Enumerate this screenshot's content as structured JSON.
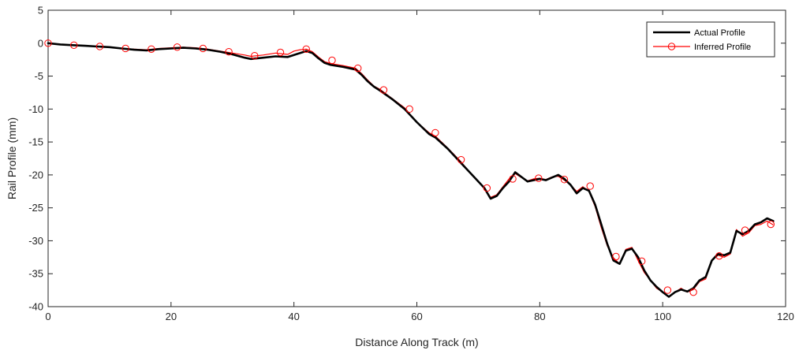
{
  "chart_data": {
    "type": "line",
    "xlabel": "Distance Along Track (m)",
    "ylabel": "Rail Profile (mm)",
    "xlim": [
      0,
      120
    ],
    "ylim": [
      -40,
      5
    ],
    "xticks": [
      0,
      20,
      40,
      60,
      80,
      100,
      120
    ],
    "yticks": [
      5,
      0,
      -5,
      -10,
      -15,
      -20,
      -25,
      -30,
      -35,
      -40
    ],
    "grid": false,
    "legend_position": "top-right",
    "series": [
      {
        "name": "Actual Profile",
        "color": "#000000",
        "marker": "none",
        "x": [
          0,
          2,
          4,
          6,
          8,
          10,
          12,
          14,
          16,
          18,
          20,
          22,
          24,
          26,
          28,
          30,
          32,
          33,
          35,
          37,
          39,
          40,
          41,
          42,
          43,
          44,
          45,
          46,
          48,
          50,
          51,
          52,
          53,
          54,
          56,
          58,
          60,
          62,
          63,
          65,
          67,
          69,
          71,
          72,
          73,
          74,
          75,
          76,
          77,
          78,
          79,
          80,
          81,
          82,
          83,
          84,
          85,
          86,
          87,
          88,
          89,
          90,
          91,
          92,
          93,
          94,
          95,
          96,
          97,
          98,
          99,
          100,
          101,
          102,
          103,
          104,
          105,
          106,
          107,
          108,
          109,
          110,
          111,
          112,
          113,
          114,
          115,
          116,
          117,
          118
        ],
        "y": [
          0,
          -0.2,
          -0.3,
          -0.4,
          -0.5,
          -0.6,
          -0.8,
          -1.0,
          -1.1,
          -0.9,
          -0.8,
          -0.7,
          -0.8,
          -1.0,
          -1.3,
          -1.7,
          -2.2,
          -2.4,
          -2.2,
          -2.0,
          -2.1,
          -1.8,
          -1.5,
          -1.2,
          -1.5,
          -2.3,
          -3.0,
          -3.3,
          -3.6,
          -4.0,
          -4.8,
          -5.8,
          -6.6,
          -7.2,
          -8.5,
          -10.0,
          -12.0,
          -13.8,
          -14.3,
          -16.0,
          -18.0,
          -20.0,
          -22.0,
          -23.6,
          -23.2,
          -22.0,
          -21.0,
          -19.6,
          -20.3,
          -21.0,
          -20.8,
          -20.6,
          -20.8,
          -20.4,
          -20.0,
          -20.6,
          -21.5,
          -22.8,
          -22.0,
          -22.4,
          -24.5,
          -27.5,
          -30.5,
          -33.0,
          -33.5,
          -31.5,
          -31.2,
          -32.5,
          -34.5,
          -36.0,
          -37.0,
          -37.8,
          -38.5,
          -37.8,
          -37.4,
          -37.7,
          -37.2,
          -36.0,
          -35.5,
          -33.0,
          -32.0,
          -32.2,
          -31.8,
          -28.5,
          -29.0,
          -28.5,
          -27.5,
          -27.2,
          -26.6,
          -27.0
        ]
      },
      {
        "name": "Inferred Profile",
        "color": "#ff0000",
        "marker": "circle",
        "x": [
          0,
          2,
          4,
          6,
          8,
          10,
          12,
          14,
          16,
          18,
          20,
          22,
          24,
          26,
          28,
          30,
          32,
          33,
          35,
          37,
          39,
          40,
          41,
          42,
          43,
          44,
          45,
          46,
          48,
          50,
          51,
          52,
          53,
          54,
          56,
          58,
          60,
          62,
          63,
          65,
          67,
          69,
          71,
          72,
          73,
          74,
          75,
          76,
          77,
          78,
          79,
          80,
          81,
          82,
          83,
          84,
          85,
          86,
          87,
          88,
          89,
          90,
          91,
          92,
          93,
          94,
          95,
          96,
          97,
          98,
          99,
          100,
          101,
          102,
          103,
          104,
          105,
          106,
          107,
          108,
          109,
          110,
          111,
          112,
          113,
          114,
          115,
          116,
          117,
          118
        ],
        "y": [
          0,
          -0.2,
          -0.3,
          -0.4,
          -0.5,
          -0.6,
          -0.8,
          -0.9,
          -1.0,
          -0.8,
          -0.7,
          -0.6,
          -0.7,
          -0.9,
          -1.2,
          -1.5,
          -1.8,
          -2.0,
          -1.8,
          -1.5,
          -1.7,
          -1.2,
          -1.0,
          -0.9,
          -1.3,
          -2.1,
          -2.8,
          -3.1,
          -3.4,
          -3.8,
          -4.6,
          -5.6,
          -6.5,
          -7.0,
          -8.4,
          -9.8,
          -12.0,
          -13.6,
          -14.1,
          -15.9,
          -17.8,
          -20.0,
          -22.0,
          -23.4,
          -23.0,
          -21.8,
          -20.6,
          -19.8,
          -20.4,
          -20.9,
          -20.6,
          -20.5,
          -20.7,
          -20.3,
          -20.2,
          -20.8,
          -21.5,
          -22.5,
          -21.8,
          -22.5,
          -24.8,
          -28.0,
          -30.8,
          -32.6,
          -33.5,
          -31.3,
          -31.0,
          -33.0,
          -34.8,
          -36.0,
          -37.2,
          -37.8,
          -38.5,
          -37.8,
          -37.2,
          -37.8,
          -37.4,
          -36.2,
          -35.8,
          -33.0,
          -32.2,
          -32.5,
          -32.0,
          -28.3,
          -29.3,
          -28.8,
          -27.7,
          -27.5,
          -27.0,
          -27.6
        ],
        "marker_x": [
          0,
          4.2,
          8.4,
          12.6,
          16.8,
          21.0,
          25.2,
          29.4,
          33.6,
          37.8,
          42.0,
          46.2,
          50.4,
          54.6,
          58.8,
          63.0,
          67.2,
          71.4,
          75.6,
          79.8,
          84.0,
          88.2,
          92.4,
          96.6,
          100.8,
          105.0,
          109.2,
          113.4,
          117.6
        ],
        "marker_y": [
          0,
          -0.3,
          -0.5,
          -0.8,
          -0.9,
          -0.6,
          -0.8,
          -1.3,
          -1.9,
          -1.4,
          -0.9,
          -2.6,
          -3.8,
          -7.1,
          -10.0,
          -13.6,
          -17.7,
          -22.0,
          -20.6,
          -20.5,
          -20.7,
          -21.7,
          -32.4,
          -33.1,
          -37.5,
          -37.8,
          -32.3,
          -28.4,
          -27.5
        ]
      }
    ]
  }
}
